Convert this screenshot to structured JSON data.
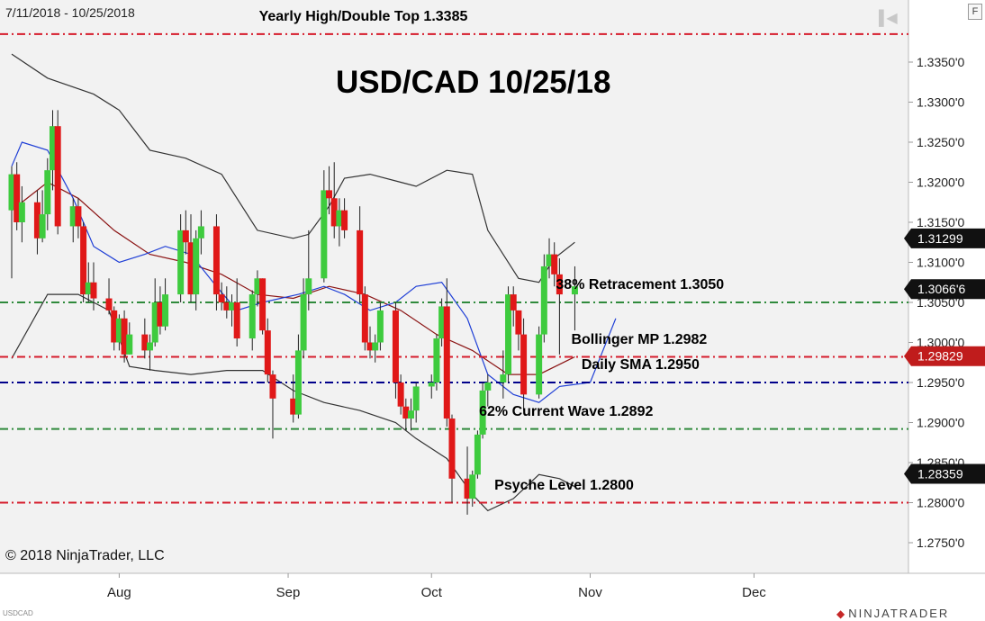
{
  "header": {
    "date_range": "7/11/2018 - 10/25/2018",
    "settings_label": "F"
  },
  "footer": {
    "copyright": "© 2018 NinjaTrader, LLC",
    "instrument_code": "USDCAD",
    "brand": "NINJATRADER",
    "brand_icon": "ninjatrader-logo-icon"
  },
  "colors": {
    "up": "#3ecb3e",
    "down": "#e01818",
    "upper_band": "#333333",
    "sma": "#1f3fd6",
    "mid": "#8b1414",
    "level_red": "#d61c2c",
    "level_green": "#2f8a3c",
    "level_blue": "#00008b"
  },
  "chart_data": {
    "type": "candlestick",
    "title": "USD/CAD 10/25/18",
    "x_range": [
      "2018-07-11",
      "2018-12-14"
    ],
    "ylim": [
      1.27,
      1.34
    ],
    "y_ticks": [
      "1.2750'0",
      "1.2800'0",
      "1.2850'0",
      "1.2900'0",
      "1.2950'0",
      "1.3000'0",
      "1.3050'0",
      "1.3100'0",
      "1.3150'0",
      "1.3200'0",
      "1.3250'0",
      "1.3300'0",
      "1.3350'0"
    ],
    "x_ticks": [
      {
        "label": "Aug",
        "date": "2018-08-01"
      },
      {
        "label": "Sep",
        "date": "2018-09-03"
      },
      {
        "label": "Oct",
        "date": "2018-10-01"
      },
      {
        "label": "Nov",
        "date": "2018-11-01"
      },
      {
        "label": "Dec",
        "date": "2018-12-03"
      }
    ],
    "price_markers": [
      {
        "label": "1.31299",
        "value": 1.31299
      },
      {
        "label": "1.3066'6",
        "value": 1.30666
      },
      {
        "label": "1.29829",
        "value": 1.29829,
        "highlight": true
      },
      {
        "label": "1.28359",
        "value": 1.28359
      }
    ],
    "levels": [
      {
        "label": "Yearly High/Double Top 1.3385",
        "value": 1.3385,
        "color": "#d61c2c",
        "label_date": "2018-08-29"
      },
      {
        "label": "38% Retracement 1.3050",
        "value": 1.305,
        "color": "#2f8a3c",
        "label_date": "2018-10-26"
      },
      {
        "label": "Bollinger MP 1.2982",
        "value": 1.2982,
        "color": "#d61c2c",
        "label_date": "2018-10-29"
      },
      {
        "label": "Daily SMA 1.2950",
        "value": 1.295,
        "color": "#00008b",
        "label_date": "2018-10-31"
      },
      {
        "label": "62% Current Wave 1.2892",
        "value": 1.2892,
        "color": "#2f8a3c",
        "label_date": "2018-10-11"
      },
      {
        "label": "Psyche Level 1.2800",
        "value": 1.28,
        "color": "#d61c2c",
        "label_date": "2018-10-14"
      }
    ],
    "candles": [
      {
        "d": "2018-07-11",
        "o": 1.3165,
        "h": 1.322,
        "l": 1.308,
        "c": 1.321
      },
      {
        "d": "2018-07-12",
        "o": 1.321,
        "h": 1.3225,
        "l": 1.314,
        "c": 1.315
      },
      {
        "d": "2018-07-13",
        "o": 1.315,
        "h": 1.3195,
        "l": 1.3125,
        "c": 1.3175
      },
      {
        "d": "2018-07-16",
        "o": 1.3175,
        "h": 1.319,
        "l": 1.311,
        "c": 1.313
      },
      {
        "d": "2018-07-17",
        "o": 1.313,
        "h": 1.319,
        "l": 1.3125,
        "c": 1.316
      },
      {
        "d": "2018-07-18",
        "o": 1.316,
        "h": 1.323,
        "l": 1.314,
        "c": 1.3215
      },
      {
        "d": "2018-07-19",
        "o": 1.3215,
        "h": 1.329,
        "l": 1.319,
        "c": 1.327
      },
      {
        "d": "2018-07-20",
        "o": 1.327,
        "h": 1.329,
        "l": 1.3135,
        "c": 1.3145
      },
      {
        "d": "2018-07-23",
        "o": 1.3145,
        "h": 1.318,
        "l": 1.3125,
        "c": 1.317
      },
      {
        "d": "2018-07-24",
        "o": 1.317,
        "h": 1.318,
        "l": 1.313,
        "c": 1.3145
      },
      {
        "d": "2018-07-25",
        "o": 1.3145,
        "h": 1.315,
        "l": 1.305,
        "c": 1.306
      },
      {
        "d": "2018-07-26",
        "o": 1.306,
        "h": 1.31,
        "l": 1.305,
        "c": 1.3075
      },
      {
        "d": "2018-07-27",
        "o": 1.3075,
        "h": 1.31,
        "l": 1.304,
        "c": 1.3055
      },
      {
        "d": "2018-07-30",
        "o": 1.3055,
        "h": 1.308,
        "l": 1.3035,
        "c": 1.304
      },
      {
        "d": "2018-07-31",
        "o": 1.304,
        "h": 1.3045,
        "l": 1.299,
        "c": 1.3
      },
      {
        "d": "2018-08-01",
        "o": 1.3,
        "h": 1.3035,
        "l": 1.299,
        "c": 1.303
      },
      {
        "d": "2018-08-02",
        "o": 1.303,
        "h": 1.304,
        "l": 1.2975,
        "c": 1.2985
      },
      {
        "d": "2018-08-03",
        "o": 1.2985,
        "h": 1.3025,
        "l": 1.2985,
        "c": 1.301
      },
      {
        "d": "2018-08-06",
        "o": 1.301,
        "h": 1.303,
        "l": 1.298,
        "c": 1.299
      },
      {
        "d": "2018-08-07",
        "o": 1.299,
        "h": 1.301,
        "l": 1.2965,
        "c": 1.3
      },
      {
        "d": "2018-08-08",
        "o": 1.3,
        "h": 1.308,
        "l": 1.2995,
        "c": 1.305
      },
      {
        "d": "2018-08-09",
        "o": 1.305,
        "h": 1.307,
        "l": 1.301,
        "c": 1.302
      },
      {
        "d": "2018-08-10",
        "o": 1.302,
        "h": 1.308,
        "l": 1.3015,
        "c": 1.306
      },
      {
        "d": "2018-08-13",
        "o": 1.306,
        "h": 1.316,
        "l": 1.305,
        "c": 1.314
      },
      {
        "d": "2018-08-14",
        "o": 1.314,
        "h": 1.3165,
        "l": 1.311,
        "c": 1.3125
      },
      {
        "d": "2018-08-15",
        "o": 1.3125,
        "h": 1.316,
        "l": 1.305,
        "c": 1.306
      },
      {
        "d": "2018-08-16",
        "o": 1.306,
        "h": 1.314,
        "l": 1.304,
        "c": 1.313
      },
      {
        "d": "2018-08-17",
        "o": 1.313,
        "h": 1.3165,
        "l": 1.311,
        "c": 1.3145
      },
      {
        "d": "2018-08-20",
        "o": 1.3145,
        "h": 1.316,
        "l": 1.304,
        "c": 1.306
      },
      {
        "d": "2018-08-21",
        "o": 1.306,
        "h": 1.3075,
        "l": 1.304,
        "c": 1.305
      },
      {
        "d": "2018-08-22",
        "o": 1.305,
        "h": 1.307,
        "l": 1.303,
        "c": 1.304
      },
      {
        "d": "2018-08-23",
        "o": 1.304,
        "h": 1.306,
        "l": 1.302,
        "c": 1.305
      },
      {
        "d": "2018-08-24",
        "o": 1.305,
        "h": 1.308,
        "l": 1.2995,
        "c": 1.3005
      },
      {
        "d": "2018-08-27",
        "o": 1.3005,
        "h": 1.3065,
        "l": 1.299,
        "c": 1.306
      },
      {
        "d": "2018-08-28",
        "o": 1.306,
        "h": 1.309,
        "l": 1.3045,
        "c": 1.308
      },
      {
        "d": "2018-08-29",
        "o": 1.308,
        "h": 1.308,
        "l": 1.301,
        "c": 1.3015
      },
      {
        "d": "2018-08-30",
        "o": 1.3015,
        "h": 1.303,
        "l": 1.295,
        "c": 1.296
      },
      {
        "d": "2018-08-31",
        "o": 1.296,
        "h": 1.2965,
        "l": 1.288,
        "c": 1.293
      },
      {
        "d": "2018-09-04",
        "o": 1.293,
        "h": 1.296,
        "l": 1.29,
        "c": 1.291
      },
      {
        "d": "2018-09-05",
        "o": 1.291,
        "h": 1.301,
        "l": 1.2905,
        "c": 1.299
      },
      {
        "d": "2018-09-06",
        "o": 1.299,
        "h": 1.308,
        "l": 1.298,
        "c": 1.306
      },
      {
        "d": "2018-09-07",
        "o": 1.306,
        "h": 1.314,
        "l": 1.304,
        "c": 1.308
      },
      {
        "d": "2018-09-10",
        "o": 1.308,
        "h": 1.3215,
        "l": 1.3075,
        "c": 1.319
      },
      {
        "d": "2018-09-11",
        "o": 1.319,
        "h": 1.322,
        "l": 1.316,
        "c": 1.318
      },
      {
        "d": "2018-09-12",
        "o": 1.318,
        "h": 1.3225,
        "l": 1.313,
        "c": 1.3145
      },
      {
        "d": "2018-09-13",
        "o": 1.3145,
        "h": 1.318,
        "l": 1.312,
        "c": 1.3165
      },
      {
        "d": "2018-09-14",
        "o": 1.3165,
        "h": 1.318,
        "l": 1.313,
        "c": 1.314
      },
      {
        "d": "2018-09-17",
        "o": 1.314,
        "h": 1.317,
        "l": 1.305,
        "c": 1.306
      },
      {
        "d": "2018-09-18",
        "o": 1.306,
        "h": 1.307,
        "l": 1.299,
        "c": 1.3
      },
      {
        "d": "2018-09-19",
        "o": 1.3,
        "h": 1.302,
        "l": 1.298,
        "c": 1.299
      },
      {
        "d": "2018-09-20",
        "o": 1.299,
        "h": 1.301,
        "l": 1.2975,
        "c": 1.3
      },
      {
        "d": "2018-09-21",
        "o": 1.3,
        "h": 1.305,
        "l": 1.299,
        "c": 1.304
      },
      {
        "d": "2018-09-24",
        "o": 1.304,
        "h": 1.305,
        "l": 1.293,
        "c": 1.295
      },
      {
        "d": "2018-09-25",
        "o": 1.295,
        "h": 1.296,
        "l": 1.291,
        "c": 1.292
      },
      {
        "d": "2018-09-26",
        "o": 1.292,
        "h": 1.293,
        "l": 1.289,
        "c": 1.2905
      },
      {
        "d": "2018-09-27",
        "o": 1.2905,
        "h": 1.293,
        "l": 1.289,
        "c": 1.2915
      },
      {
        "d": "2018-09-28",
        "o": 1.2915,
        "h": 1.295,
        "l": 1.29,
        "c": 1.2945
      },
      {
        "d": "2018-10-01",
        "o": 1.2945,
        "h": 1.296,
        "l": 1.293,
        "c": 1.295
      },
      {
        "d": "2018-10-02",
        "o": 1.295,
        "h": 1.301,
        "l": 1.294,
        "c": 1.3005
      },
      {
        "d": "2018-10-03",
        "o": 1.3005,
        "h": 1.3055,
        "l": 1.2995,
        "c": 1.3045
      },
      {
        "d": "2018-10-04",
        "o": 1.3045,
        "h": 1.308,
        "l": 1.2895,
        "c": 1.2905
      },
      {
        "d": "2018-10-05",
        "o": 1.2905,
        "h": 1.291,
        "l": 1.28,
        "c": 1.283
      },
      {
        "d": "2018-10-08",
        "o": 1.283,
        "h": 1.287,
        "l": 1.2785,
        "c": 1.2805
      },
      {
        "d": "2018-10-09",
        "o": 1.2805,
        "h": 1.284,
        "l": 1.2795,
        "c": 1.2835
      },
      {
        "d": "2018-10-10",
        "o": 1.2835,
        "h": 1.289,
        "l": 1.283,
        "c": 1.2885
      },
      {
        "d": "2018-10-11",
        "o": 1.2885,
        "h": 1.295,
        "l": 1.288,
        "c": 1.294
      },
      {
        "d": "2018-10-12",
        "o": 1.294,
        "h": 1.296,
        "l": 1.292,
        "c": 1.295
      },
      {
        "d": "2018-10-15",
        "o": 1.295,
        "h": 1.299,
        "l": 1.293,
        "c": 1.296
      },
      {
        "d": "2018-10-16",
        "o": 1.296,
        "h": 1.307,
        "l": 1.295,
        "c": 1.306
      },
      {
        "d": "2018-10-17",
        "o": 1.306,
        "h": 1.307,
        "l": 1.302,
        "c": 1.304
      },
      {
        "d": "2018-10-18",
        "o": 1.304,
        "h": 1.304,
        "l": 1.299,
        "c": 1.301
      },
      {
        "d": "2018-10-19",
        "o": 1.301,
        "h": 1.303,
        "l": 1.2915,
        "c": 1.2935
      },
      {
        "d": "2018-10-22",
        "o": 1.2935,
        "h": 1.302,
        "l": 1.293,
        "c": 1.301
      },
      {
        "d": "2018-10-23",
        "o": 1.301,
        "h": 1.311,
        "l": 1.3,
        "c": 1.3095
      },
      {
        "d": "2018-10-24",
        "o": 1.3095,
        "h": 1.313,
        "l": 1.308,
        "c": 1.311
      },
      {
        "d": "2018-10-25",
        "o": 1.311,
        "h": 1.3125,
        "l": 1.307,
        "c": 1.3085
      },
      {
        "d": "2018-10-26",
        "o": 1.3085,
        "h": 1.3105,
        "l": 1.2985,
        "c": 1.306
      },
      {
        "d": "2018-10-29",
        "o": 1.306,
        "h": 1.3095,
        "l": 1.3015,
        "c": 1.307
      }
    ],
    "upper_band": [
      {
        "d": "2018-07-11",
        "v": 1.336
      },
      {
        "d": "2018-07-18",
        "v": 1.333
      },
      {
        "d": "2018-07-27",
        "v": 1.331
      },
      {
        "d": "2018-08-01",
        "v": 1.329
      },
      {
        "d": "2018-08-07",
        "v": 1.324
      },
      {
        "d": "2018-08-14",
        "v": 1.323
      },
      {
        "d": "2018-08-21",
        "v": 1.321
      },
      {
        "d": "2018-08-28",
        "v": 1.314
      },
      {
        "d": "2018-09-04",
        "v": 1.313
      },
      {
        "d": "2018-09-07",
        "v": 1.3135
      },
      {
        "d": "2018-09-11",
        "v": 1.317
      },
      {
        "d": "2018-09-14",
        "v": 1.3205
      },
      {
        "d": "2018-09-19",
        "v": 1.321
      },
      {
        "d": "2018-09-25",
        "v": 1.32
      },
      {
        "d": "2018-09-28",
        "v": 1.3195
      },
      {
        "d": "2018-10-04",
        "v": 1.3215
      },
      {
        "d": "2018-10-09",
        "v": 1.321
      },
      {
        "d": "2018-10-12",
        "v": 1.314
      },
      {
        "d": "2018-10-18",
        "v": 1.308
      },
      {
        "d": "2018-10-22",
        "v": 1.3075
      },
      {
        "d": "2018-10-25",
        "v": 1.3105
      },
      {
        "d": "2018-10-29",
        "v": 1.3125
      }
    ],
    "lower_band": [
      {
        "d": "2018-07-11",
        "v": 1.298
      },
      {
        "d": "2018-07-18",
        "v": 1.306
      },
      {
        "d": "2018-07-24",
        "v": 1.306
      },
      {
        "d": "2018-07-30",
        "v": 1.304
      },
      {
        "d": "2018-08-03",
        "v": 1.297
      },
      {
        "d": "2018-08-08",
        "v": 1.2965
      },
      {
        "d": "2018-08-15",
        "v": 1.296
      },
      {
        "d": "2018-08-22",
        "v": 1.2965
      },
      {
        "d": "2018-08-29",
        "v": 1.2965
      },
      {
        "d": "2018-09-04",
        "v": 1.294
      },
      {
        "d": "2018-09-10",
        "v": 1.2925
      },
      {
        "d": "2018-09-17",
        "v": 1.2915
      },
      {
        "d": "2018-09-24",
        "v": 1.29
      },
      {
        "d": "2018-09-28",
        "v": 1.288
      },
      {
        "d": "2018-10-04",
        "v": 1.2855
      },
      {
        "d": "2018-10-09",
        "v": 1.281
      },
      {
        "d": "2018-10-12",
        "v": 1.279
      },
      {
        "d": "2018-10-17",
        "v": 1.2805
      },
      {
        "d": "2018-10-22",
        "v": 1.2835
      },
      {
        "d": "2018-10-26",
        "v": 1.283
      },
      {
        "d": "2018-10-29",
        "v": 1.282
      }
    ],
    "sma": [
      {
        "d": "2018-07-11",
        "v": 1.322
      },
      {
        "d": "2018-07-13",
        "v": 1.325
      },
      {
        "d": "2018-07-18",
        "v": 1.324
      },
      {
        "d": "2018-07-23",
        "v": 1.318
      },
      {
        "d": "2018-07-27",
        "v": 1.312
      },
      {
        "d": "2018-08-01",
        "v": 1.31
      },
      {
        "d": "2018-08-06",
        "v": 1.311
      },
      {
        "d": "2018-08-10",
        "v": 1.312
      },
      {
        "d": "2018-08-15",
        "v": 1.311
      },
      {
        "d": "2018-08-20",
        "v": 1.307
      },
      {
        "d": "2018-08-24",
        "v": 1.304
      },
      {
        "d": "2018-08-29",
        "v": 1.305
      },
      {
        "d": "2018-09-05",
        "v": 1.306
      },
      {
        "d": "2018-09-10",
        "v": 1.307
      },
      {
        "d": "2018-09-14",
        "v": 1.306
      },
      {
        "d": "2018-09-19",
        "v": 1.304
      },
      {
        "d": "2018-09-24",
        "v": 1.305
      },
      {
        "d": "2018-09-28",
        "v": 1.307
      },
      {
        "d": "2018-10-03",
        "v": 1.3075
      },
      {
        "d": "2018-10-08",
        "v": 1.303
      },
      {
        "d": "2018-10-12",
        "v": 1.296
      },
      {
        "d": "2018-10-17",
        "v": 1.2935
      },
      {
        "d": "2018-10-22",
        "v": 1.2925
      },
      {
        "d": "2018-10-26",
        "v": 1.2945
      },
      {
        "d": "2018-11-01",
        "v": 1.295
      },
      {
        "d": "2018-11-06",
        "v": 1.303
      }
    ],
    "midline": [
      {
        "d": "2018-07-11",
        "v": 1.3165
      },
      {
        "d": "2018-07-18",
        "v": 1.32
      },
      {
        "d": "2018-07-24",
        "v": 1.318
      },
      {
        "d": "2018-07-31",
        "v": 1.314
      },
      {
        "d": "2018-08-07",
        "v": 1.311
      },
      {
        "d": "2018-08-14",
        "v": 1.31
      },
      {
        "d": "2018-08-21",
        "v": 1.3085
      },
      {
        "d": "2018-08-28",
        "v": 1.306
      },
      {
        "d": "2018-09-04",
        "v": 1.3055
      },
      {
        "d": "2018-09-11",
        "v": 1.307
      },
      {
        "d": "2018-09-18",
        "v": 1.306
      },
      {
        "d": "2018-09-25",
        "v": 1.304
      },
      {
        "d": "2018-10-02",
        "v": 1.301
      },
      {
        "d": "2018-10-09",
        "v": 1.299
      },
      {
        "d": "2018-10-16",
        "v": 1.296
      },
      {
        "d": "2018-10-22",
        "v": 1.296
      },
      {
        "d": "2018-10-29",
        "v": 1.2982
      }
    ]
  }
}
